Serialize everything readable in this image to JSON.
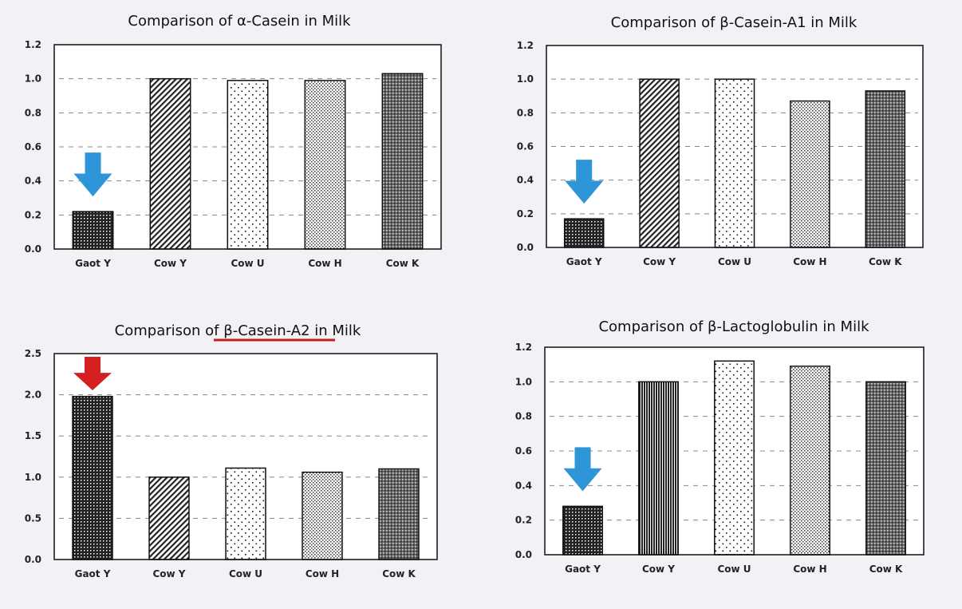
{
  "chart_data": [
    {
      "type": "bar",
      "title": "Comparison of α-Casein in Milk",
      "categories": [
        "Gaot Y",
        "Cow Y",
        "Cow U",
        "Cow H",
        "Cow K"
      ],
      "values": [
        0.22,
        1.0,
        0.99,
        0.99,
        1.03
      ],
      "ylim": [
        0,
        1.2
      ],
      "yticks": [
        "0.0",
        "0.2",
        "0.4",
        "0.6",
        "0.8",
        "1.0",
        "1.2"
      ],
      "grid": true,
      "annotation": {
        "type": "arrow-down",
        "target": "Gaot Y",
        "color": "#2e95d8"
      }
    },
    {
      "type": "bar",
      "title": "Comparison of β-Casein-A1 in Milk",
      "categories": [
        "Gaot Y",
        "Cow Y",
        "Cow U",
        "Cow H",
        "Cow K"
      ],
      "values": [
        0.17,
        1.0,
        1.0,
        0.87,
        0.93
      ],
      "ylim": [
        0,
        1.2
      ],
      "yticks": [
        "0.0",
        "0.2",
        "0.4",
        "0.6",
        "0.8",
        "1.0",
        "1.2"
      ],
      "grid": true,
      "annotation": {
        "type": "arrow-down",
        "target": "Gaot Y",
        "color": "#2e95d8"
      }
    },
    {
      "type": "bar",
      "title": "Comparison of β-Casein-A2 in Milk",
      "title_underlined": "β-Casein-A2",
      "categories": [
        "Gaot Y",
        "Cow Y",
        "Cow U",
        "Cow H",
        "Cow K"
      ],
      "values": [
        1.98,
        1.0,
        1.11,
        1.06,
        1.1
      ],
      "ylim": [
        0,
        2.5
      ],
      "yticks": [
        "0.0",
        "0.5",
        "1.0",
        "1.5",
        "2.0",
        "2.5"
      ],
      "grid": true,
      "annotation": {
        "type": "arrow-down",
        "target": "Gaot Y",
        "color": "#d42020"
      }
    },
    {
      "type": "bar",
      "title": "Comparison of β-Lactoglobulin in Milk",
      "categories": [
        "Gaot Y",
        "Cow Y",
        "Cow U",
        "Cow H",
        "Cow K"
      ],
      "values": [
        0.28,
        1.0,
        1.12,
        1.09,
        1.0
      ],
      "ylim": [
        0,
        1.2
      ],
      "yticks": [
        "0.0",
        "0.2",
        "0.4",
        "0.6",
        "0.8",
        "1.0",
        "1.2"
      ],
      "grid": true,
      "annotation": {
        "type": "arrow-down",
        "target": "Gaot Y",
        "color": "#2e95d8"
      }
    }
  ]
}
